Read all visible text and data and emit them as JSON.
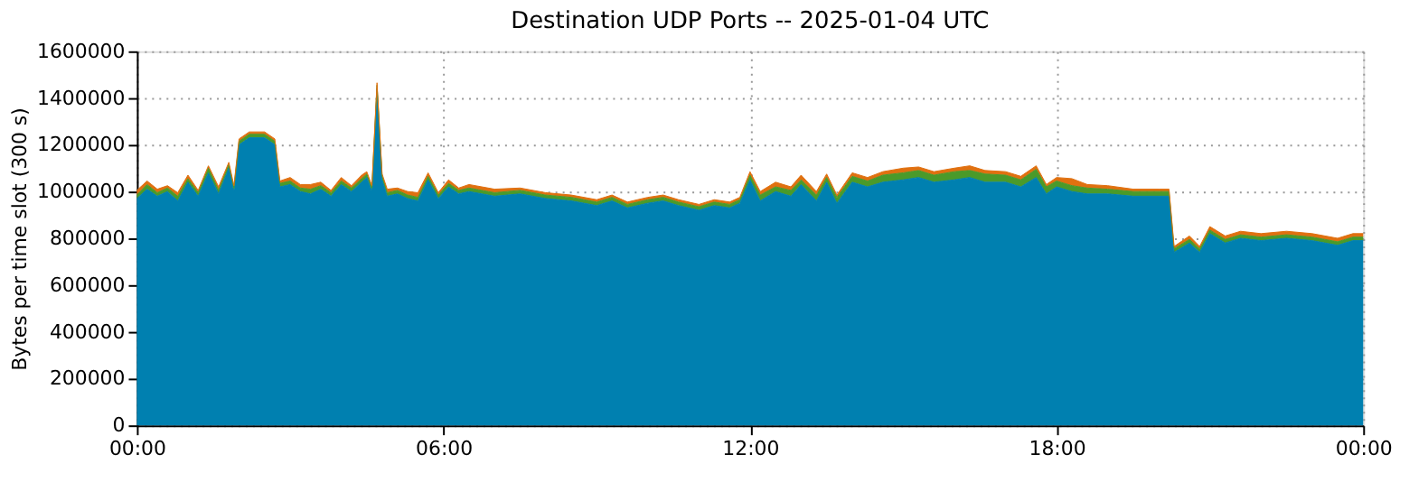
{
  "chart_data": {
    "type": "area",
    "title": "Destination UDP Ports -- 2025-01-04 UTC",
    "ylabel": "Bytes per time slot (300 s)",
    "stacked": true,
    "x": [
      0.0,
      0.2,
      0.4,
      0.6,
      0.8,
      1.0,
      1.2,
      1.4,
      1.6,
      1.8,
      1.9,
      2.0,
      2.2,
      2.5,
      2.7,
      2.8,
      3.0,
      3.2,
      3.4,
      3.6,
      3.8,
      4.0,
      4.2,
      4.4,
      4.5,
      4.6,
      4.7,
      4.8,
      4.9,
      5.1,
      5.3,
      5.5,
      5.7,
      5.9,
      6.1,
      6.3,
      6.5,
      7.0,
      7.5,
      8.0,
      8.5,
      9.0,
      9.3,
      9.6,
      10.0,
      10.3,
      10.6,
      11.0,
      11.3,
      11.6,
      11.8,
      12.0,
      12.2,
      12.5,
      12.8,
      13.0,
      13.3,
      13.5,
      13.7,
      14.0,
      14.3,
      14.6,
      15.0,
      15.3,
      15.6,
      16.0,
      16.3,
      16.6,
      17.0,
      17.3,
      17.6,
      17.8,
      18.0,
      18.3,
      18.6,
      19.0,
      19.5,
      20.0,
      20.2,
      20.3,
      20.6,
      20.8,
      21.0,
      21.3,
      21.6,
      22.0,
      22.5,
      23.0,
      23.5,
      23.8,
      24.0
    ],
    "series": [
      {
        "color": "#0080b0",
        "values": [
          970000,
          1010000,
          980000,
          1000000,
          960000,
          1040000,
          980000,
          1080000,
          990000,
          1100000,
          1000000,
          1200000,
          1230000,
          1230000,
          1200000,
          1020000,
          1030000,
          1000000,
          990000,
          1010000,
          980000,
          1030000,
          1000000,
          1040000,
          1060000,
          1000000,
          1440000,
          1050000,
          980000,
          990000,
          970000,
          960000,
          1050000,
          970000,
          1020000,
          990000,
          1000000,
          980000,
          990000,
          970000,
          960000,
          940000,
          960000,
          930000,
          950000,
          960000,
          940000,
          920000,
          940000,
          930000,
          950000,
          1050000,
          960000,
          1000000,
          980000,
          1030000,
          960000,
          1040000,
          950000,
          1040000,
          1020000,
          1040000,
          1050000,
          1060000,
          1040000,
          1050000,
          1060000,
          1040000,
          1040000,
          1020000,
          1060000,
          990000,
          1020000,
          1000000,
          990000,
          990000,
          980000,
          980000,
          980000,
          740000,
          780000,
          740000,
          820000,
          780000,
          800000,
          790000,
          800000,
          790000,
          770000,
          790000,
          790000
        ]
      },
      {
        "color": "#4a9a2a",
        "values": [
          15000,
          20000,
          15000,
          15000,
          20000,
          15000,
          15000,
          20000,
          15000,
          15000,
          15000,
          15000,
          15000,
          15000,
          15000,
          15000,
          15000,
          15000,
          20000,
          15000,
          15000,
          15000,
          15000,
          15000,
          15000,
          15000,
          15000,
          15000,
          15000,
          15000,
          15000,
          15000,
          15000,
          15000,
          15000,
          15000,
          15000,
          15000,
          15000,
          15000,
          15000,
          15000,
          15000,
          15000,
          15000,
          15000,
          15000,
          15000,
          15000,
          15000,
          15000,
          20000,
          25000,
          20000,
          25000,
          20000,
          25000,
          20000,
          25000,
          25000,
          25000,
          30000,
          30000,
          30000,
          30000,
          35000,
          30000,
          35000,
          30000,
          30000,
          35000,
          30000,
          25000,
          25000,
          25000,
          20000,
          20000,
          20000,
          20000,
          15000,
          15000,
          15000,
          15000,
          15000,
          15000,
          15000,
          15000,
          15000,
          15000,
          15000,
          15000
        ]
      },
      {
        "color": "#e07010",
        "values": [
          20000,
          15000,
          15000,
          10000,
          15000,
          15000,
          10000,
          10000,
          15000,
          10000,
          10000,
          10000,
          10000,
          10000,
          10000,
          10000,
          15000,
          15000,
          20000,
          15000,
          10000,
          15000,
          10000,
          15000,
          10000,
          10000,
          10000,
          10000,
          15000,
          10000,
          15000,
          20000,
          15000,
          10000,
          15000,
          10000,
          15000,
          15000,
          10000,
          10000,
          10000,
          10000,
          10000,
          10000,
          10000,
          10000,
          10000,
          10000,
          10000,
          10000,
          10000,
          15000,
          15000,
          20000,
          15000,
          20000,
          15000,
          15000,
          10000,
          15000,
          15000,
          15000,
          20000,
          15000,
          15000,
          15000,
          20000,
          15000,
          15000,
          15000,
          15000,
          10000,
          15000,
          30000,
          15000,
          15000,
          10000,
          10000,
          10000,
          10000,
          15000,
          10000,
          15000,
          15000,
          15000,
          15000,
          15000,
          15000,
          15000,
          15000,
          15000
        ]
      }
    ],
    "xlim": [
      0,
      24
    ],
    "xticks": [
      {
        "value": 0,
        "label": "00:00"
      },
      {
        "value": 6,
        "label": "06:00"
      },
      {
        "value": 12,
        "label": "12:00"
      },
      {
        "value": 18,
        "label": "18:00"
      },
      {
        "value": 24,
        "label": "00:00"
      }
    ],
    "ylim": [
      0,
      1600000
    ],
    "yticks": [
      0,
      200000,
      400000,
      600000,
      800000,
      1000000,
      1200000,
      1400000,
      1600000
    ],
    "grid": true,
    "legend": false
  }
}
